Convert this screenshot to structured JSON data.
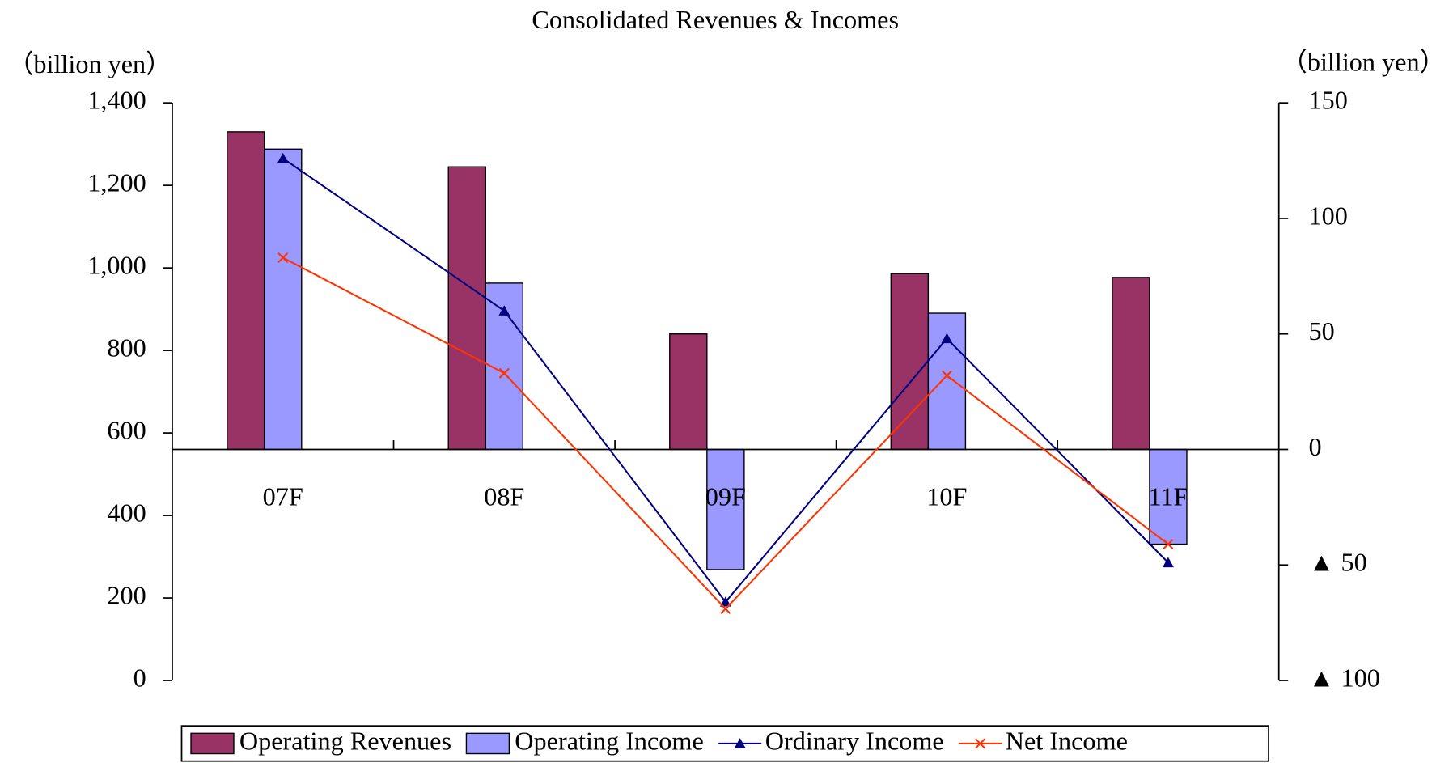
{
  "chart_data": {
    "type": "bar",
    "title": "Consolidated Revenues & Incomes",
    "y_label": "（billion yen）",
    "y2_label": "（billion yen）",
    "categories": [
      "07F",
      "08F",
      "09F",
      "10F",
      "11F"
    ],
    "ylim": [
      0,
      1400
    ],
    "yticks": [
      0,
      200,
      400,
      600,
      800,
      {
        "value": 1000,
        "label": "1,000"
      },
      {
        "value": 1200,
        "label": "1,200"
      },
      {
        "value": 1400,
        "label": "1,400"
      }
    ],
    "y2lim": [
      -100,
      150
    ],
    "y2ticks": [
      {
        "value": -100,
        "label": "▲ 100"
      },
      {
        "value": -50,
        "label": "▲ 50"
      },
      0,
      50,
      100,
      150
    ],
    "series": [
      {
        "name": "Operating Revenues",
        "type": "bar",
        "color": "#993366",
        "values": [
          1330,
          1245,
          840,
          986,
          977
        ]
      },
      {
        "name": "Operating Income",
        "type": "bar",
        "axis": "y2",
        "color": "#9999ff",
        "values": [
          130,
          72,
          -52,
          59,
          -41
        ]
      },
      {
        "name": "Ordinary Income",
        "type": "line",
        "axis": "y2",
        "marker": "triangle",
        "color": "#000080",
        "values": [
          126,
          60,
          -66,
          48,
          -49
        ]
      },
      {
        "name": "Net Income",
        "type": "line",
        "axis": "y2",
        "marker": "x",
        "color": "#ff3300",
        "values": [
          83,
          33,
          -69,
          32,
          -41
        ]
      }
    ],
    "legend": "bottom"
  }
}
